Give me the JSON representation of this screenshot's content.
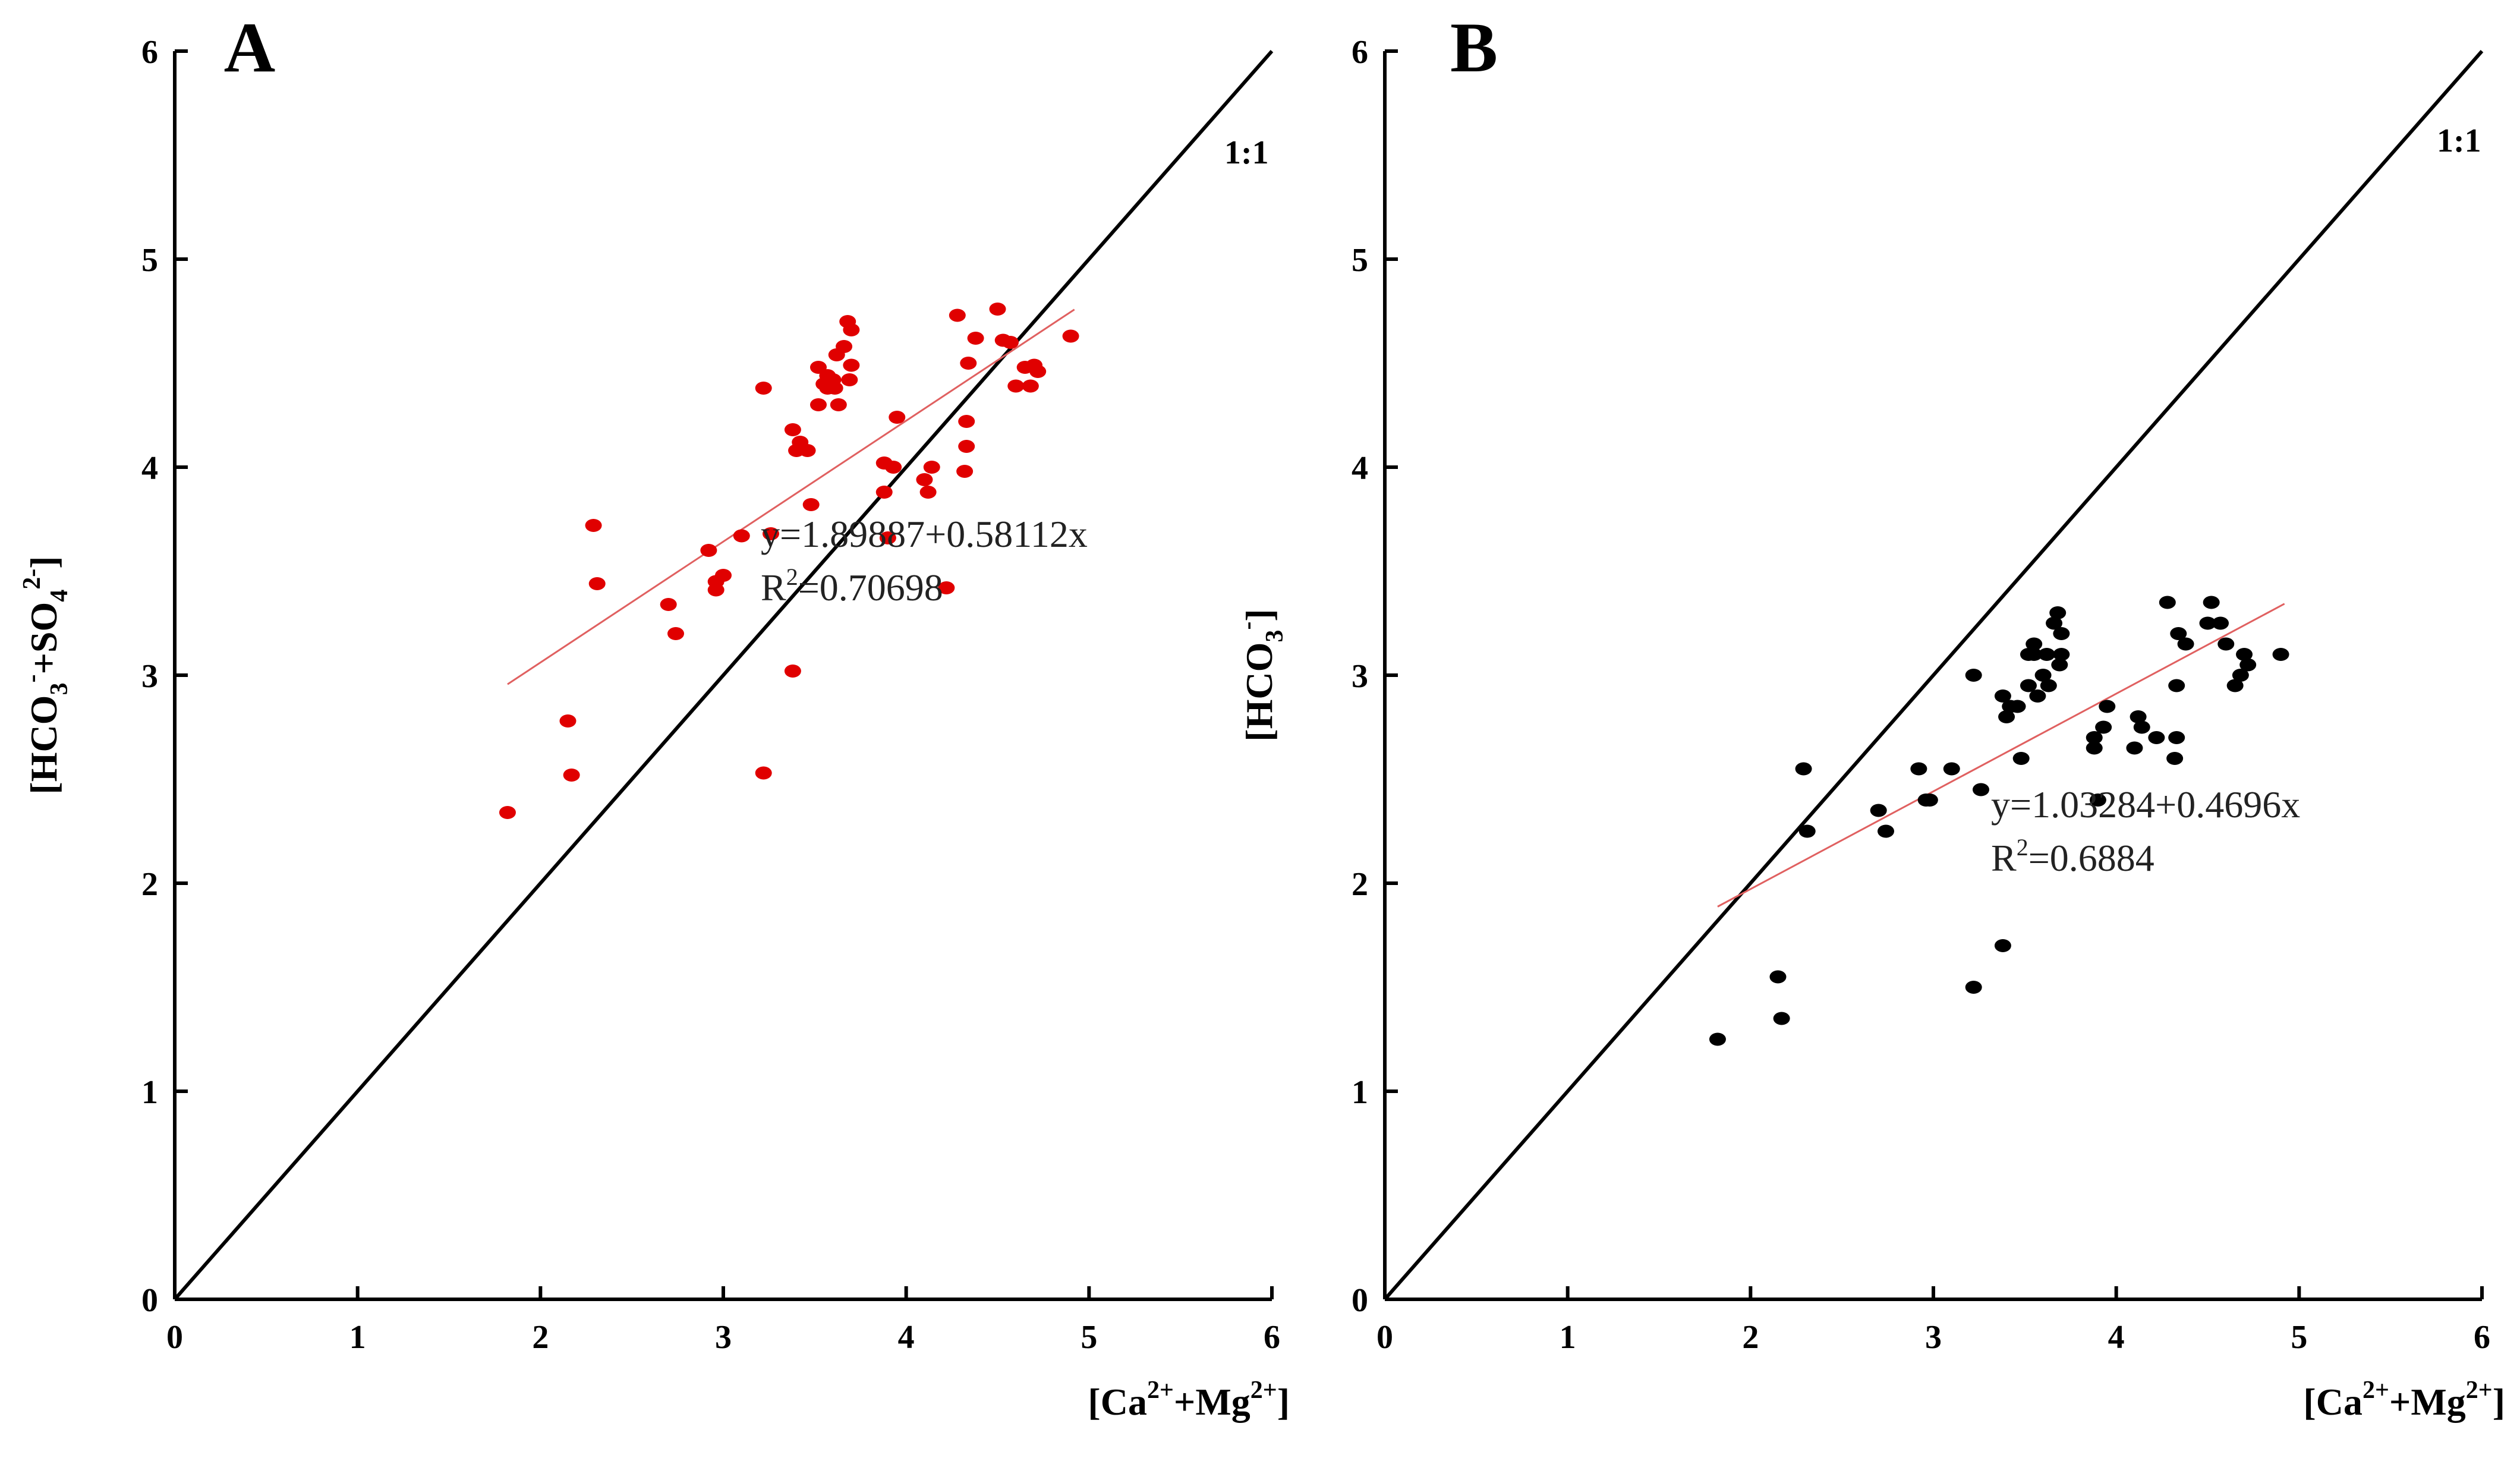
{
  "chart_data": [
    {
      "type": "scatter",
      "panel_label": "A",
      "title": "",
      "xlabel_parts": [
        "[Ca",
        "2+",
        "+Mg",
        "2+",
        "]"
      ],
      "ylabel_parts": [
        "[HCO",
        "3",
        "-",
        "+SO",
        "4",
        "2-",
        "]"
      ],
      "xlim": [
        0,
        6
      ],
      "ylim": [
        0,
        6
      ],
      "xticks": [
        "0",
        "1",
        "2",
        "3",
        "4",
        "5",
        "6"
      ],
      "yticks": [
        "0",
        "1",
        "2",
        "3",
        "4",
        "5",
        "6"
      ],
      "grid": false,
      "ratio_label": "1:1",
      "point_color": "#e00000",
      "fit_color": "#e06060",
      "fit": {
        "intercept": 1.89887,
        "slope": 0.58112,
        "x_range": [
          1.82,
          4.92
        ]
      },
      "equation_text": "y=1.89887+0.58112x",
      "r2_prefix": "R",
      "r2_exp": "2",
      "r2_value": "=0.70698",
      "points": [
        [
          1.82,
          2.34
        ],
        [
          2.15,
          2.78
        ],
        [
          2.17,
          2.52
        ],
        [
          2.29,
          3.72
        ],
        [
          2.31,
          3.44
        ],
        [
          2.7,
          3.34
        ],
        [
          2.74,
          3.2
        ],
        [
          2.92,
          3.6
        ],
        [
          2.96,
          3.45
        ],
        [
          2.96,
          3.41
        ],
        [
          3.0,
          3.48
        ],
        [
          3.1,
          3.67
        ],
        [
          3.22,
          2.53
        ],
        [
          3.22,
          4.38
        ],
        [
          3.26,
          3.68
        ],
        [
          3.38,
          3.02
        ],
        [
          3.38,
          4.18
        ],
        [
          3.4,
          4.08
        ],
        [
          3.42,
          4.12
        ],
        [
          3.46,
          4.08
        ],
        [
          3.48,
          3.82
        ],
        [
          3.52,
          4.3
        ],
        [
          3.52,
          4.48
        ],
        [
          3.55,
          4.4
        ],
        [
          3.57,
          4.44
        ],
        [
          3.57,
          4.38
        ],
        [
          3.6,
          4.42
        ],
        [
          3.61,
          4.38
        ],
        [
          3.62,
          4.54
        ],
        [
          3.63,
          4.3
        ],
        [
          3.66,
          4.58
        ],
        [
          3.68,
          4.7
        ],
        [
          3.69,
          4.42
        ],
        [
          3.7,
          4.49
        ],
        [
          3.7,
          4.66
        ],
        [
          3.88,
          3.88
        ],
        [
          3.88,
          4.02
        ],
        [
          3.9,
          3.66
        ],
        [
          3.93,
          4.0
        ],
        [
          3.95,
          4.24
        ],
        [
          4.1,
          3.94
        ],
        [
          4.12,
          3.88
        ],
        [
          4.14,
          4.0
        ],
        [
          4.22,
          3.42
        ],
        [
          4.28,
          4.73
        ],
        [
          4.32,
          3.98
        ],
        [
          4.33,
          4.1
        ],
        [
          4.33,
          4.22
        ],
        [
          4.34,
          4.5
        ],
        [
          4.38,
          4.62
        ],
        [
          4.5,
          4.76
        ],
        [
          4.53,
          4.61
        ],
        [
          4.57,
          4.6
        ],
        [
          4.6,
          4.39
        ],
        [
          4.65,
          4.48
        ],
        [
          4.68,
          4.39
        ],
        [
          4.7,
          4.49
        ],
        [
          4.72,
          4.46
        ],
        [
          4.9,
          4.63
        ]
      ]
    },
    {
      "type": "scatter",
      "panel_label": "B",
      "title": "",
      "xlabel_parts": [
        "[Ca",
        "2+",
        "+Mg",
        "2+",
        "]"
      ],
      "ylabel_parts": [
        "[HCO",
        "3",
        "-",
        "]"
      ],
      "xlim": [
        0,
        6
      ],
      "ylim": [
        0,
        6
      ],
      "xticks": [
        "0",
        "1",
        "2",
        "3",
        "4",
        "5",
        "6"
      ],
      "yticks": [
        "0",
        "1",
        "2",
        "3",
        "4",
        "5",
        "6"
      ],
      "grid": false,
      "ratio_label": "1:1",
      "point_color": "#000000",
      "fit_color": "#e06060",
      "fit": {
        "intercept": 1.03284,
        "slope": 0.4696,
        "x_range": [
          1.82,
          4.92
        ]
      },
      "equation_text": "y=1.03284+0.4696x",
      "r2_prefix": "R",
      "r2_exp": "2",
      "r2_value": "=0.6884",
      "points": [
        [
          1.82,
          1.25
        ],
        [
          2.15,
          1.55
        ],
        [
          2.17,
          1.35
        ],
        [
          2.29,
          2.55
        ],
        [
          2.31,
          2.25
        ],
        [
          2.7,
          2.35
        ],
        [
          2.74,
          2.25
        ],
        [
          2.92,
          2.55
        ],
        [
          2.96,
          2.4
        ],
        [
          2.98,
          2.4
        ],
        [
          3.1,
          2.55
        ],
        [
          3.22,
          1.5
        ],
        [
          3.22,
          3.0
        ],
        [
          3.26,
          2.45
        ],
        [
          3.38,
          1.7
        ],
        [
          3.38,
          2.9
        ],
        [
          3.4,
          2.8
        ],
        [
          3.42,
          2.85
        ],
        [
          3.46,
          2.85
        ],
        [
          3.48,
          2.6
        ],
        [
          3.52,
          2.95
        ],
        [
          3.52,
          3.1
        ],
        [
          3.55,
          3.1
        ],
        [
          3.55,
          3.15
        ],
        [
          3.57,
          2.9
        ],
        [
          3.6,
          3.0
        ],
        [
          3.62,
          3.1
        ],
        [
          3.63,
          2.95
        ],
        [
          3.66,
          3.25
        ],
        [
          3.68,
          3.3
        ],
        [
          3.69,
          3.05
        ],
        [
          3.7,
          3.1
        ],
        [
          3.7,
          3.2
        ],
        [
          3.88,
          2.65
        ],
        [
          3.88,
          2.7
        ],
        [
          3.9,
          2.4
        ],
        [
          3.93,
          2.75
        ],
        [
          3.95,
          2.85
        ],
        [
          4.1,
          2.65
        ],
        [
          4.12,
          2.8
        ],
        [
          4.14,
          2.75
        ],
        [
          4.22,
          2.7
        ],
        [
          4.28,
          3.35
        ],
        [
          4.32,
          2.6
        ],
        [
          4.33,
          2.95
        ],
        [
          4.33,
          2.7
        ],
        [
          4.34,
          3.2
        ],
        [
          4.38,
          3.15
        ],
        [
          4.5,
          3.25
        ],
        [
          4.52,
          3.35
        ],
        [
          4.57,
          3.25
        ],
        [
          4.6,
          3.15
        ],
        [
          4.65,
          2.95
        ],
        [
          4.68,
          3.0
        ],
        [
          4.7,
          3.1
        ],
        [
          4.72,
          3.05
        ],
        [
          4.9,
          3.1
        ]
      ]
    }
  ]
}
